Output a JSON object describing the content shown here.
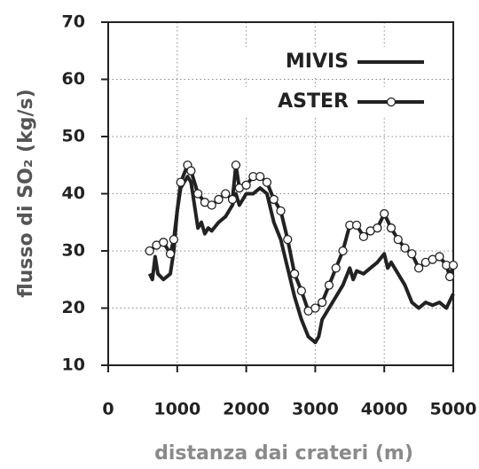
{
  "chart_data": {
    "type": "line",
    "x_label": "distanza dai crateri (m)",
    "y_label": "flusso di SO₂ (kg/s)",
    "xlim": [
      0,
      5000
    ],
    "xticks": [
      0,
      1000,
      2000,
      3000,
      4000,
      5000
    ],
    "ylim": [
      10,
      70
    ],
    "yticks": [
      10,
      20,
      30,
      40,
      50,
      60,
      70
    ],
    "grid": true,
    "legend": "upper right",
    "series": [
      {
        "name": "MIVIS",
        "color": "#222222",
        "marker": false,
        "x": [
          600,
          640,
          680,
          720,
          800,
          900,
          950,
          1000,
          1050,
          1100,
          1150,
          1200,
          1250,
          1300,
          1350,
          1400,
          1450,
          1500,
          1600,
          1700,
          1800,
          1850,
          1900,
          2000,
          2100,
          2200,
          2300,
          2400,
          2500,
          2600,
          2700,
          2800,
          2900,
          3000,
          3050,
          3100,
          3200,
          3300,
          3400,
          3500,
          3550,
          3600,
          3700,
          3800,
          3900,
          4000,
          4050,
          4100,
          4200,
          4300,
          4400,
          4500,
          4600,
          4700,
          4800,
          4900,
          5000
        ],
        "values": [
          26,
          25,
          29,
          26,
          25,
          26,
          30,
          37,
          41,
          42,
          43,
          42,
          38,
          34,
          35,
          33,
          34,
          33.5,
          35,
          36,
          38,
          40,
          38,
          40,
          40,
          41,
          40,
          35,
          32,
          27,
          22,
          18,
          15,
          14,
          15,
          18,
          20,
          22,
          24,
          27,
          25,
          26.5,
          26,
          27,
          28,
          29.5,
          27,
          28,
          26,
          24,
          21,
          20,
          21,
          20.5,
          21,
          20,
          22.5
        ]
      },
      {
        "name": "ASTER",
        "color": "#222222",
        "marker": true,
        "x": [
          600,
          700,
          800,
          900,
          950,
          1050,
          1150,
          1200,
          1300,
          1400,
          1500,
          1600,
          1700,
          1800,
          1850,
          1900,
          2000,
          2100,
          2200,
          2300,
          2400,
          2500,
          2600,
          2700,
          2800,
          2900,
          3000,
          3100,
          3200,
          3300,
          3400,
          3500,
          3600,
          3700,
          3800,
          3900,
          4000,
          4100,
          4200,
          4300,
          4400,
          4500,
          4600,
          4700,
          4800,
          4900,
          4950,
          5000
        ],
        "values": [
          30,
          31,
          31.5,
          29.5,
          32,
          42,
          45,
          44,
          40,
          38.5,
          38,
          39,
          40,
          39,
          45,
          41,
          41.5,
          43,
          43,
          42,
          39,
          37,
          32,
          26,
          23,
          19.5,
          20,
          21,
          24,
          27,
          30,
          34.5,
          34.5,
          32.5,
          33.5,
          34,
          36.5,
          34,
          32,
          30.5,
          29.5,
          27,
          28,
          28.5,
          29,
          27.5,
          25.5,
          27.5
        ]
      }
    ]
  }
}
